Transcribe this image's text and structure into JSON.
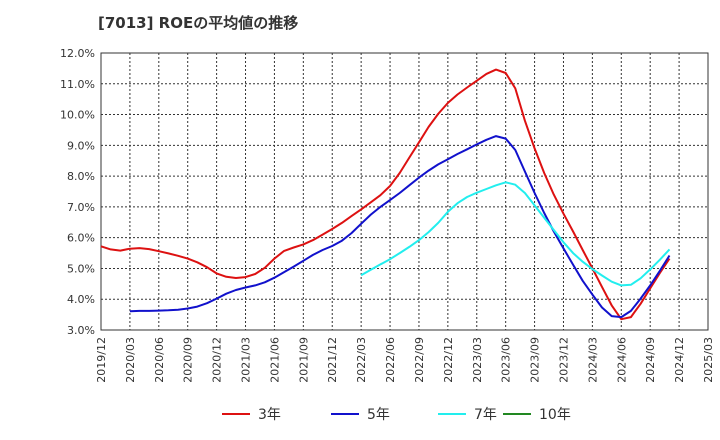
{
  "chart_data": {
    "type": "line",
    "title": "[7013]  ROEの平均値の推移",
    "xlabel": "",
    "ylabel": "",
    "ylim": [
      3.0,
      12.0
    ],
    "y_ticks": [
      "3.0%",
      "4.0%",
      "5.0%",
      "6.0%",
      "7.0%",
      "8.0%",
      "9.0%",
      "10.0%",
      "11.0%",
      "12.0%"
    ],
    "x_ticks": [
      "2019/12",
      "2020/03",
      "2020/06",
      "2020/09",
      "2020/12",
      "2021/03",
      "2021/06",
      "2021/09",
      "2021/12",
      "2022/03",
      "2022/06",
      "2022/09",
      "2022/12",
      "2023/03",
      "2023/06",
      "2023/09",
      "2023/12",
      "2024/03",
      "2024/06",
      "2024/09",
      "2024/12",
      "2025/03"
    ],
    "grid": true,
    "legend_position": "bottom",
    "series": [
      {
        "name": "3年",
        "color": "#dd1111",
        "points": [
          [
            "2019/12",
            5.72
          ],
          [
            "2020/01",
            5.62
          ],
          [
            "2020/02",
            5.58
          ],
          [
            "2020/03",
            5.64
          ],
          [
            "2020/04",
            5.66
          ],
          [
            "2020/05",
            5.63
          ],
          [
            "2020/06",
            5.56
          ],
          [
            "2020/07",
            5.49
          ],
          [
            "2020/08",
            5.41
          ],
          [
            "2020/09",
            5.32
          ],
          [
            "2020/10",
            5.2
          ],
          [
            "2020/11",
            5.04
          ],
          [
            "2020/12",
            4.84
          ],
          [
            "2021/01",
            4.73
          ],
          [
            "2021/02",
            4.69
          ],
          [
            "2021/03",
            4.72
          ],
          [
            "2021/04",
            4.82
          ],
          [
            "2021/05",
            5.02
          ],
          [
            "2021/06",
            5.32
          ],
          [
            "2021/07",
            5.57
          ],
          [
            "2021/08",
            5.68
          ],
          [
            "2021/09",
            5.78
          ],
          [
            "2021/10",
            5.92
          ],
          [
            "2021/11",
            6.1
          ],
          [
            "2021/12",
            6.28
          ],
          [
            "2022/01",
            6.48
          ],
          [
            "2022/02",
            6.7
          ],
          [
            "2022/03",
            6.92
          ],
          [
            "2022/04",
            7.15
          ],
          [
            "2022/05",
            7.38
          ],
          [
            "2022/06",
            7.68
          ],
          [
            "2022/07",
            8.1
          ],
          [
            "2022/08",
            8.6
          ],
          [
            "2022/09",
            9.1
          ],
          [
            "2022/10",
            9.6
          ],
          [
            "2022/11",
            10.02
          ],
          [
            "2022/12",
            10.38
          ],
          [
            "2023/01",
            10.65
          ],
          [
            "2023/02",
            10.88
          ],
          [
            "2023/03",
            11.1
          ],
          [
            "2023/04",
            11.32
          ],
          [
            "2023/05",
            11.46
          ],
          [
            "2023/06",
            11.35
          ],
          [
            "2023/07",
            10.85
          ],
          [
            "2023/08",
            9.8
          ],
          [
            "2023/09",
            8.9
          ],
          [
            "2023/10",
            8.1
          ],
          [
            "2023/11",
            7.4
          ],
          [
            "2023/12",
            6.78
          ],
          [
            "2024/01",
            6.2
          ],
          [
            "2024/02",
            5.6
          ],
          [
            "2024/03",
            5.0
          ],
          [
            "2024/04",
            4.4
          ],
          [
            "2024/05",
            3.8
          ],
          [
            "2024/06",
            3.35
          ],
          [
            "2024/07",
            3.42
          ],
          [
            "2024/08",
            3.85
          ],
          [
            "2024/09",
            4.35
          ],
          [
            "2024/10",
            4.85
          ],
          [
            "2024/11",
            5.32
          ]
        ]
      },
      {
        "name": "5年",
        "color": "#1111cc",
        "points": [
          [
            "2020/03",
            3.61
          ],
          [
            "2020/04",
            3.62
          ],
          [
            "2020/05",
            3.62
          ],
          [
            "2020/06",
            3.63
          ],
          [
            "2020/07",
            3.64
          ],
          [
            "2020/08",
            3.66
          ],
          [
            "2020/09",
            3.7
          ],
          [
            "2020/10",
            3.76
          ],
          [
            "2020/11",
            3.87
          ],
          [
            "2020/12",
            4.02
          ],
          [
            "2021/01",
            4.18
          ],
          [
            "2021/02",
            4.3
          ],
          [
            "2021/03",
            4.38
          ],
          [
            "2021/04",
            4.45
          ],
          [
            "2021/05",
            4.55
          ],
          [
            "2021/06",
            4.7
          ],
          [
            "2021/07",
            4.88
          ],
          [
            "2021/08",
            5.06
          ],
          [
            "2021/09",
            5.25
          ],
          [
            "2021/10",
            5.44
          ],
          [
            "2021/11",
            5.6
          ],
          [
            "2021/12",
            5.73
          ],
          [
            "2022/01",
            5.9
          ],
          [
            "2022/02",
            6.15
          ],
          [
            "2022/03",
            6.45
          ],
          [
            "2022/04",
            6.75
          ],
          [
            "2022/05",
            7.0
          ],
          [
            "2022/06",
            7.22
          ],
          [
            "2022/07",
            7.45
          ],
          [
            "2022/08",
            7.7
          ],
          [
            "2022/09",
            7.95
          ],
          [
            "2022/10",
            8.18
          ],
          [
            "2022/11",
            8.38
          ],
          [
            "2022/12",
            8.55
          ],
          [
            "2023/01",
            8.72
          ],
          [
            "2023/02",
            8.87
          ],
          [
            "2023/03",
            9.03
          ],
          [
            "2023/04",
            9.18
          ],
          [
            "2023/05",
            9.3
          ],
          [
            "2023/06",
            9.22
          ],
          [
            "2023/07",
            8.85
          ],
          [
            "2023/08",
            8.15
          ],
          [
            "2023/09",
            7.45
          ],
          [
            "2023/10",
            6.8
          ],
          [
            "2023/11",
            6.2
          ],
          [
            "2023/12",
            5.65
          ],
          [
            "2024/01",
            5.12
          ],
          [
            "2024/02",
            4.6
          ],
          [
            "2024/03",
            4.15
          ],
          [
            "2024/04",
            3.73
          ],
          [
            "2024/05",
            3.45
          ],
          [
            "2024/06",
            3.42
          ],
          [
            "2024/07",
            3.62
          ],
          [
            "2024/08",
            4.02
          ],
          [
            "2024/09",
            4.45
          ],
          [
            "2024/10",
            4.92
          ],
          [
            "2024/11",
            5.42
          ]
        ]
      },
      {
        "name": "7年",
        "color": "#22eeee",
        "points": [
          [
            "2022/03",
            4.78
          ],
          [
            "2022/04",
            4.96
          ],
          [
            "2022/05",
            5.13
          ],
          [
            "2022/06",
            5.3
          ],
          [
            "2022/07",
            5.5
          ],
          [
            "2022/08",
            5.7
          ],
          [
            "2022/09",
            5.92
          ],
          [
            "2022/10",
            6.18
          ],
          [
            "2022/11",
            6.48
          ],
          [
            "2022/12",
            6.84
          ],
          [
            "2023/01",
            7.12
          ],
          [
            "2023/02",
            7.32
          ],
          [
            "2023/03",
            7.46
          ],
          [
            "2023/04",
            7.58
          ],
          [
            "2023/05",
            7.7
          ],
          [
            "2023/06",
            7.8
          ],
          [
            "2023/07",
            7.72
          ],
          [
            "2023/08",
            7.45
          ],
          [
            "2023/09",
            7.05
          ],
          [
            "2023/10",
            6.65
          ],
          [
            "2023/11",
            6.25
          ],
          [
            "2023/12",
            5.85
          ],
          [
            "2024/01",
            5.5
          ],
          [
            "2024/02",
            5.22
          ],
          [
            "2024/03",
            4.98
          ],
          [
            "2024/04",
            4.77
          ],
          [
            "2024/05",
            4.57
          ],
          [
            "2024/06",
            4.45
          ],
          [
            "2024/07",
            4.47
          ],
          [
            "2024/08",
            4.68
          ],
          [
            "2024/09",
            4.97
          ],
          [
            "2024/10",
            5.28
          ],
          [
            "2024/11",
            5.62
          ]
        ]
      },
      {
        "name": "10年",
        "color": "#228822",
        "points": []
      }
    ]
  }
}
